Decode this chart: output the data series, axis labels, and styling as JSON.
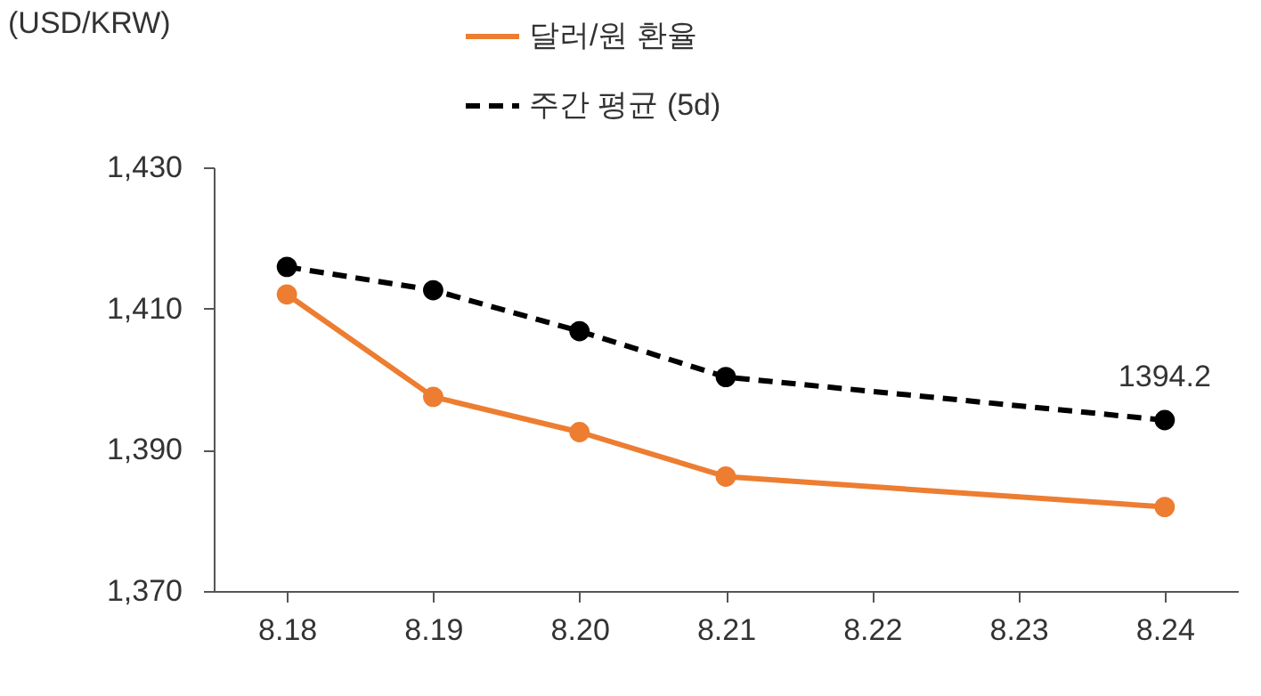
{
  "chart_data": {
    "type": "line",
    "ylabel": "(USD/KRW)",
    "categories": [
      "8.18",
      "8.19",
      "8.20",
      "8.21",
      "8.22",
      "8.23",
      "8.24"
    ],
    "series": [
      {
        "name": "달러/원 환율",
        "color": "#ed7d31",
        "line_style": "solid",
        "values": [
          1412,
          1397.5,
          1392.5,
          1386.2,
          null,
          null,
          1381.9
        ]
      },
      {
        "name": "주간 평균 (5d)",
        "color": "#000000",
        "line_style": "dashed",
        "values": [
          1415.9,
          1412.6,
          1406.8,
          1400.3,
          null,
          null,
          1394.2
        ]
      }
    ],
    "ylim": [
      1370,
      1430
    ],
    "yticks": [
      {
        "value": 1370,
        "label": "1,370"
      },
      {
        "value": 1390,
        "label": "1,390"
      },
      {
        "value": 1410,
        "label": "1,410"
      },
      {
        "value": 1430,
        "label": "1,430"
      }
    ],
    "annotations": [
      {
        "text": "1394.2",
        "x": "8.24",
        "y": 1394.2
      }
    ],
    "grid": false,
    "legend": "top",
    "marker": "circle"
  }
}
